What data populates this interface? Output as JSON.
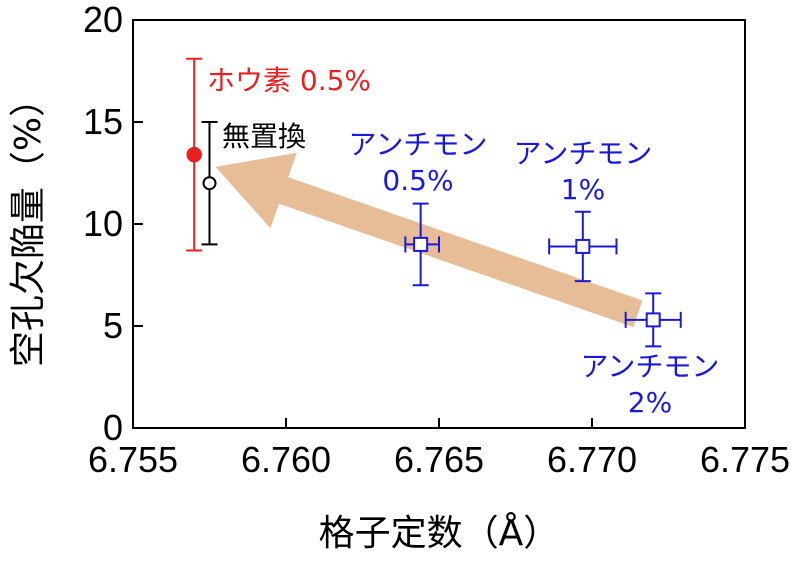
{
  "chart_data": {
    "type": "scatter",
    "xlabel": "格子定数（Å）",
    "ylabel": "空孔欠陥量（%）",
    "xlim": [
      6.755,
      6.775
    ],
    "ylim": [
      0,
      20
    ],
    "x_ticks": [
      "6.755",
      "6.760",
      "6.765",
      "6.770",
      "6.775"
    ],
    "y_ticks": [
      "0",
      "5",
      "10",
      "15",
      "20"
    ],
    "grid": false,
    "colors": {
      "boron": "#e8201f",
      "antimony": "#1a1ad6",
      "undoped": "#000000",
      "arrow": "#e7bd97"
    },
    "series": [
      {
        "name": "ホウ素 0.5%",
        "color": "#e8201f",
        "marker": "filled-circle",
        "points": [
          {
            "x": 6.757,
            "y": 13.4,
            "yerr_low": 8.7,
            "yerr_high": 18.1
          }
        ]
      },
      {
        "name": "無置換",
        "color": "#000000",
        "marker": "open-circle",
        "points": [
          {
            "x": 6.7575,
            "y": 12.0,
            "yerr_low": 9.0,
            "yerr_high": 15.0
          }
        ]
      },
      {
        "name": "アンチモン 0.5%",
        "color": "#1a1ad6",
        "marker": "open-square",
        "points": [
          {
            "x": 6.7644,
            "y": 9.0,
            "xerr_low": 6.7639,
            "xerr_high": 6.765,
            "yerr_low": 7.0,
            "yerr_high": 11.0
          }
        ]
      },
      {
        "name": "アンチモン 1%",
        "color": "#1a1ad6",
        "marker": "open-square",
        "points": [
          {
            "x": 6.7697,
            "y": 8.9,
            "xerr_low": 6.7686,
            "xerr_high": 6.7708,
            "yerr_low": 7.2,
            "yerr_high": 10.6
          }
        ]
      },
      {
        "name": "アンチモン 2%",
        "color": "#1a1ad6",
        "marker": "open-square",
        "points": [
          {
            "x": 6.772,
            "y": 5.3,
            "xerr_low": 6.7711,
            "xerr_high": 6.7729,
            "yerr_low": 4.0,
            "yerr_high": 6.6
          }
        ]
      }
    ],
    "annotations": [
      {
        "id": "boron",
        "line1": "ホウ素 0.5%",
        "line2": ""
      },
      {
        "id": "undoped",
        "line1": "無置換",
        "line2": ""
      },
      {
        "id": "sb05",
        "line1": "アンチモン",
        "line2": "0.5%"
      },
      {
        "id": "sb1",
        "line1": "アンチモン",
        "line2": "1%"
      },
      {
        "id": "sb2",
        "line1": "アンチモン",
        "line2": "2%"
      }
    ],
    "arrow": {
      "from": {
        "x": 6.7715,
        "y": 5.6
      },
      "to": {
        "x": 6.7577,
        "y": 12.8
      }
    }
  }
}
